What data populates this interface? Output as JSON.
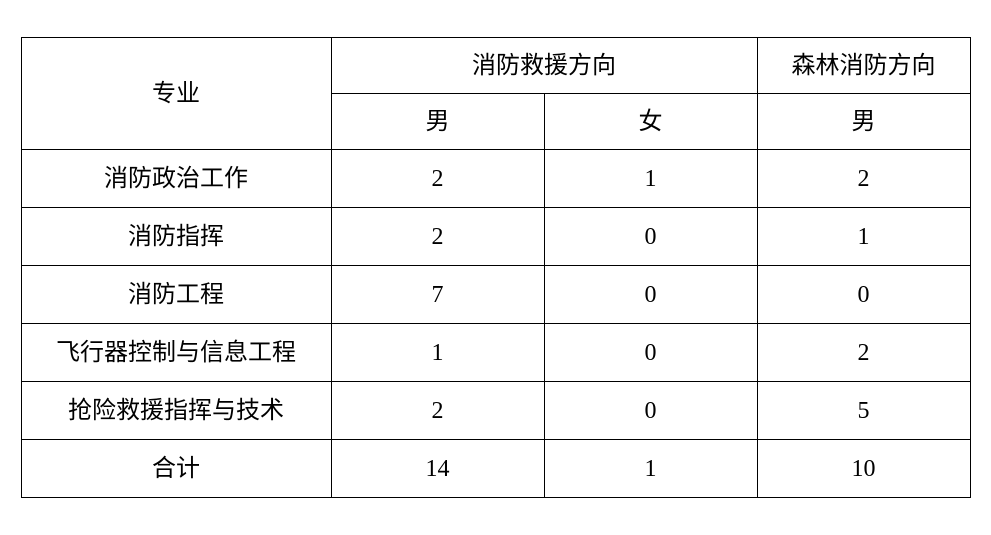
{
  "table": {
    "type": "table",
    "background_color": "#ffffff",
    "border_color": "#000000",
    "border_width": 1.5,
    "font_family": "SimSun",
    "font_size": 24,
    "text_color": "#000000",
    "header": {
      "major_label": "专业",
      "group1_label": "消防救援方向",
      "group2_label": "森林消防方向",
      "sub_col1": "男",
      "sub_col2": "女",
      "sub_col3": "男"
    },
    "rows": [
      {
        "major": "消防政治工作",
        "c1": "2",
        "c2": "1",
        "c3": "2"
      },
      {
        "major": "消防指挥",
        "c1": "2",
        "c2": "0",
        "c3": "1"
      },
      {
        "major": "消防工程",
        "c1": "7",
        "c2": "0",
        "c3": "0"
      },
      {
        "major": "飞行器控制与信息工程",
        "c1": "1",
        "c2": "0",
        "c3": "2"
      },
      {
        "major": "抢险救援指挥与技术",
        "c1": "2",
        "c2": "0",
        "c3": "5"
      },
      {
        "major": "合计",
        "c1": "14",
        "c2": "1",
        "c3": "10"
      }
    ],
    "column_widths": {
      "major": 310,
      "data": 213
    }
  }
}
